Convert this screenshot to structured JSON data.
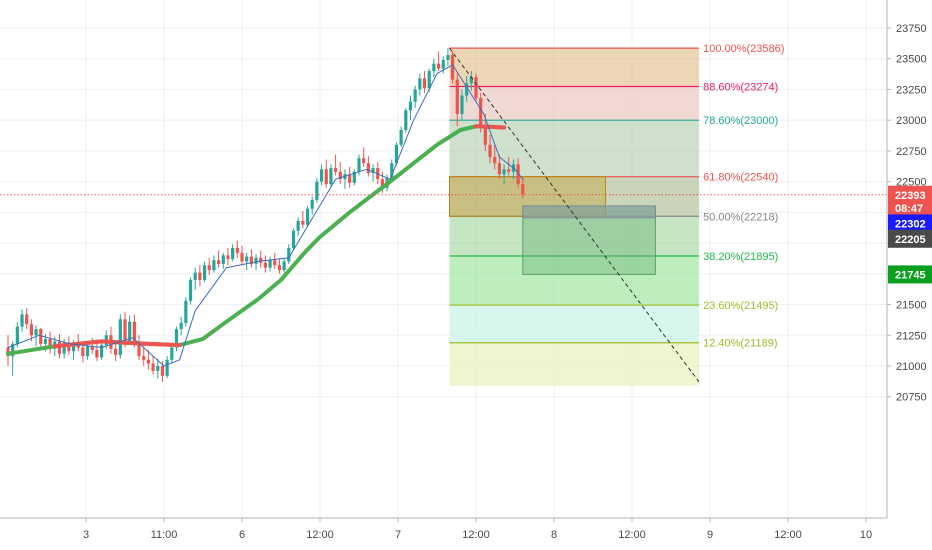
{
  "chart_data": {
    "type": "candlestick",
    "title": "",
    "xlabel": "",
    "ylabel": "",
    "ylim": [
      20550,
      23850
    ],
    "grid": true,
    "x_ticks": [
      {
        "label": "3",
        "t": 0.5
      },
      {
        "label": "11:00",
        "t": 1.0
      },
      {
        "label": "6",
        "t": 1.5
      },
      {
        "label": "12:00",
        "t": 2.0
      },
      {
        "label": "7",
        "t": 2.5
      },
      {
        "label": "12:00",
        "t": 3.0
      },
      {
        "label": "8",
        "t": 3.5
      },
      {
        "label": "12:00",
        "t": 4.0
      },
      {
        "label": "9",
        "t": 4.5
      },
      {
        "label": "12:00",
        "t": 5.0
      },
      {
        "label": "10",
        "t": 5.5
      }
    ],
    "y_ticks": [
      20750,
      21000,
      21250,
      21500,
      21750,
      22000,
      22250,
      22500,
      22750,
      23000,
      23250,
      23500,
      23750
    ],
    "price_badges": [
      {
        "label": "22393",
        "value": 22393,
        "color": "#ef5350",
        "text_color": "#ffffff"
      },
      {
        "label": "08:47",
        "value": 22285,
        "color": "#ef5350",
        "text_color": "#ffffff"
      },
      {
        "label": "22302",
        "value": 22160,
        "color": "#1a1aff",
        "text_color": "#ffffff"
      },
      {
        "label": "22205",
        "value": 22035,
        "color": "#4a4a4a",
        "text_color": "#ffffff"
      },
      {
        "label": "21745",
        "value": 21745,
        "color": "#0a9f1e",
        "text_color": "#ffffff"
      }
    ],
    "current_price": 22393,
    "candles": [
      [
        0.0,
        21150,
        21250,
        21000,
        21080
      ],
      [
        0.03,
        21080,
        21200,
        20920,
        21180
      ],
      [
        0.06,
        21180,
        21360,
        21150,
        21320
      ],
      [
        0.09,
        21320,
        21460,
        21280,
        21420
      ],
      [
        0.12,
        21420,
        21470,
        21300,
        21340
      ],
      [
        0.15,
        21340,
        21380,
        21200,
        21250
      ],
      [
        0.18,
        21250,
        21330,
        21160,
        21300
      ],
      [
        0.21,
        21300,
        21310,
        21150,
        21180
      ],
      [
        0.24,
        21180,
        21260,
        21120,
        21220
      ],
      [
        0.27,
        21220,
        21280,
        21100,
        21140
      ],
      [
        0.3,
        21140,
        21240,
        21080,
        21200
      ],
      [
        0.33,
        21200,
        21260,
        21060,
        21100
      ],
      [
        0.36,
        21100,
        21220,
        21060,
        21190
      ],
      [
        0.39,
        21190,
        21240,
        21090,
        21120
      ],
      [
        0.42,
        21120,
        21210,
        21050,
        21170
      ],
      [
        0.45,
        21170,
        21260,
        21120,
        21150
      ],
      [
        0.48,
        21150,
        21200,
        21030,
        21080
      ],
      [
        0.51,
        21080,
        21180,
        21050,
        21160
      ],
      [
        0.54,
        21160,
        21230,
        21100,
        21130
      ],
      [
        0.57,
        21130,
        21180,
        21040,
        21070
      ],
      [
        0.6,
        21070,
        21200,
        21050,
        21170
      ],
      [
        0.63,
        21170,
        21290,
        21140,
        21250
      ],
      [
        0.66,
        21250,
        21320,
        21100,
        21140
      ],
      [
        0.69,
        21140,
        21190,
        21040,
        21090
      ],
      [
        0.72,
        21090,
        21420,
        21060,
        21380
      ],
      [
        0.75,
        21380,
        21440,
        21150,
        21200
      ],
      [
        0.78,
        21200,
        21410,
        21170,
        21360
      ],
      [
        0.81,
        21360,
        21420,
        21150,
        21180
      ],
      [
        0.84,
        21180,
        21250,
        21050,
        21080
      ],
      [
        0.87,
        21080,
        21160,
        21000,
        21050
      ],
      [
        0.9,
        21050,
        21130,
        20970,
        21020
      ],
      [
        0.93,
        21020,
        21080,
        20930,
        20960
      ],
      [
        0.96,
        20960,
        21060,
        20900,
        21000
      ],
      [
        0.99,
        21000,
        21040,
        20870,
        20920
      ],
      [
        1.02,
        20920,
        21080,
        20900,
        21050
      ],
      [
        1.05,
        21050,
        21180,
        21020,
        21150
      ],
      [
        1.08,
        21150,
        21320,
        21120,
        21300
      ],
      [
        1.11,
        21300,
        21400,
        21250,
        21350
      ],
      [
        1.14,
        21350,
        21560,
        21320,
        21530
      ],
      [
        1.17,
        21530,
        21720,
        21500,
        21700
      ],
      [
        1.2,
        21700,
        21800,
        21620,
        21760
      ],
      [
        1.23,
        21760,
        21820,
        21650,
        21700
      ],
      [
        1.26,
        21700,
        21850,
        21680,
        21820
      ],
      [
        1.29,
        21820,
        21880,
        21740,
        21780
      ],
      [
        1.32,
        21780,
        21900,
        21760,
        21860
      ],
      [
        1.35,
        21860,
        21940,
        21800,
        21830
      ],
      [
        1.38,
        21830,
        21920,
        21790,
        21900
      ],
      [
        1.41,
        21900,
        21960,
        21820,
        21870
      ],
      [
        1.44,
        21870,
        21990,
        21850,
        21960
      ],
      [
        1.47,
        21960,
        22020,
        21880,
        21920
      ],
      [
        1.5,
        21920,
        21980,
        21820,
        21850
      ],
      [
        1.53,
        21850,
        21920,
        21780,
        21890
      ],
      [
        1.56,
        21890,
        21950,
        21800,
        21830
      ],
      [
        1.59,
        21830,
        21910,
        21780,
        21880
      ],
      [
        1.62,
        21880,
        21940,
        21800,
        21840
      ],
      [
        1.65,
        21840,
        21900,
        21760,
        21800
      ],
      [
        1.68,
        21800,
        21890,
        21770,
        21860
      ],
      [
        1.71,
        21860,
        21920,
        21790,
        21820
      ],
      [
        1.74,
        21820,
        21870,
        21750,
        21780
      ],
      [
        1.77,
        21780,
        21880,
        21760,
        21850
      ],
      [
        1.8,
        21850,
        21990,
        21830,
        21960
      ],
      [
        1.83,
        21960,
        22120,
        21940,
        22100
      ],
      [
        1.86,
        22100,
        22210,
        22060,
        22180
      ],
      [
        1.89,
        22180,
        22260,
        22120,
        22150
      ],
      [
        1.92,
        22150,
        22300,
        22130,
        22280
      ],
      [
        1.95,
        22280,
        22380,
        22230,
        22350
      ],
      [
        1.98,
        22350,
        22530,
        22330,
        22500
      ],
      [
        2.01,
        22500,
        22640,
        22470,
        22600
      ],
      [
        2.04,
        22600,
        22680,
        22450,
        22480
      ],
      [
        2.07,
        22480,
        22640,
        22460,
        22610
      ],
      [
        2.1,
        22610,
        22720,
        22550,
        22580
      ],
      [
        2.13,
        22580,
        22660,
        22480,
        22520
      ],
      [
        2.16,
        22520,
        22600,
        22440,
        22560
      ],
      [
        2.19,
        22560,
        22620,
        22450,
        22490
      ],
      [
        2.22,
        22490,
        22600,
        22470,
        22580
      ],
      [
        2.25,
        22580,
        22720,
        22550,
        22690
      ],
      [
        2.28,
        22690,
        22780,
        22620,
        22650
      ],
      [
        2.31,
        22650,
        22710,
        22540,
        22570
      ],
      [
        2.34,
        22570,
        22640,
        22500,
        22610
      ],
      [
        2.37,
        22610,
        22660,
        22480,
        22520
      ],
      [
        2.4,
        22520,
        22580,
        22410,
        22450
      ],
      [
        2.43,
        22450,
        22560,
        22420,
        22530
      ],
      [
        2.46,
        22530,
        22680,
        22510,
        22650
      ],
      [
        2.49,
        22650,
        22820,
        22630,
        22800
      ],
      [
        2.52,
        22800,
        22950,
        22780,
        22920
      ],
      [
        2.55,
        22920,
        23100,
        22900,
        23080
      ],
      [
        2.58,
        23080,
        23200,
        23000,
        23150
      ],
      [
        2.61,
        23150,
        23280,
        23100,
        23250
      ],
      [
        2.64,
        23250,
        23380,
        23200,
        23340
      ],
      [
        2.67,
        23340,
        23400,
        23220,
        23260
      ],
      [
        2.7,
        23260,
        23420,
        23230,
        23400
      ],
      [
        2.73,
        23400,
        23500,
        23350,
        23460
      ],
      [
        2.76,
        23460,
        23560,
        23400,
        23420
      ],
      [
        2.79,
        23420,
        23520,
        23380,
        23490
      ],
      [
        2.82,
        23490,
        23586,
        23440,
        23530
      ],
      [
        2.85,
        23530,
        23560,
        23300,
        23330
      ],
      [
        2.88,
        23330,
        23380,
        22950,
        23050
      ],
      [
        2.91,
        23050,
        23250,
        23000,
        23200
      ],
      [
        2.94,
        23200,
        23360,
        23150,
        23300
      ],
      [
        2.97,
        23300,
        23400,
        23240,
        23350
      ],
      [
        3.0,
        23350,
        23380,
        23150,
        23180
      ],
      [
        3.03,
        23180,
        23220,
        22900,
        22950
      ],
      [
        3.06,
        22950,
        23050,
        22750,
        22800
      ],
      [
        3.09,
        22800,
        22880,
        22650,
        22700
      ],
      [
        3.12,
        22700,
        22800,
        22600,
        22650
      ],
      [
        3.15,
        22650,
        22720,
        22520,
        22560
      ],
      [
        3.18,
        22560,
        22640,
        22480,
        22600
      ],
      [
        3.21,
        22600,
        22700,
        22550,
        22580
      ],
      [
        3.24,
        22580,
        22680,
        22520,
        22640
      ],
      [
        3.27,
        22640,
        22690,
        22450,
        22480
      ],
      [
        3.3,
        22480,
        22530,
        22360,
        22393
      ]
    ],
    "moving_averages": [
      {
        "color": "#4caf50",
        "down_color": "#ef5350",
        "width": 4,
        "down_from_t": 0.3,
        "down_to_t": 1.1,
        "points": [
          [
            0.0,
            21100
          ],
          [
            0.3,
            21160
          ],
          [
            0.6,
            21200
          ],
          [
            0.9,
            21180
          ],
          [
            1.1,
            21170
          ],
          [
            1.25,
            21220
          ],
          [
            1.4,
            21360
          ],
          [
            1.6,
            21540
          ],
          [
            1.75,
            21700
          ],
          [
            1.9,
            21920
          ],
          [
            2.0,
            22050
          ],
          [
            2.2,
            22260
          ],
          [
            2.45,
            22500
          ],
          [
            2.6,
            22650
          ],
          [
            2.75,
            22800
          ],
          [
            2.9,
            22920
          ],
          [
            3.0,
            22950
          ],
          [
            3.1,
            22945
          ],
          [
            3.18,
            22940
          ]
        ]
      },
      {
        "color": "#3d6dbd",
        "width": 1,
        "points": [
          [
            0.0,
            21150
          ],
          [
            0.2,
            21250
          ],
          [
            0.4,
            21180
          ],
          [
            0.6,
            21150
          ],
          [
            0.8,
            21230
          ],
          [
            1.0,
            21000
          ],
          [
            1.1,
            21050
          ],
          [
            1.2,
            21450
          ],
          [
            1.4,
            21800
          ],
          [
            1.6,
            21850
          ],
          [
            1.8,
            21880
          ],
          [
            1.95,
            22200
          ],
          [
            2.1,
            22520
          ],
          [
            2.3,
            22600
          ],
          [
            2.45,
            22520
          ],
          [
            2.6,
            23000
          ],
          [
            2.75,
            23380
          ],
          [
            2.85,
            23450
          ],
          [
            2.95,
            23250
          ],
          [
            3.05,
            23050
          ],
          [
            3.15,
            22700
          ],
          [
            3.25,
            22600
          ],
          [
            3.3,
            22520
          ]
        ]
      }
    ],
    "fibonacci": {
      "t_start": 2.83,
      "t_end": 4.43,
      "levels": [
        {
          "label": "100.00%(23586)",
          "value": 23586,
          "color": "#ef5350",
          "fill": "#d6a35a",
          "fill_opacity": 0.45
        },
        {
          "label": "88.60%(23274)",
          "value": 23274,
          "color": "#e91e63",
          "fill": "#e3b4a8",
          "fill_opacity": 0.5
        },
        {
          "label": "78.60%(23000)",
          "value": 23000,
          "color": "#26a69a",
          "fill": "#a7c7a2",
          "fill_opacity": 0.55
        },
        {
          "label": "61.80%(22540)",
          "value": 22540,
          "color": "#ef5350",
          "fill": "#a5b78e",
          "fill_opacity": 0.6
        },
        {
          "label": "50.00%(22218)",
          "value": 22218,
          "color": "#888888",
          "fill": "#9ed49b",
          "fill_opacity": 0.6
        },
        {
          "label": "38.20%(21895)",
          "value": 21895,
          "color": "#22b84a",
          "fill": "#93e393",
          "fill_opacity": 0.6
        },
        {
          "label": "23.60%(21495)",
          "value": 21495,
          "color": "#a0c230",
          "fill": "#c8f3e4",
          "fill_opacity": 0.7
        },
        {
          "label": "12.40%(21189)",
          "value": 21189,
          "color": "#9cbb2a",
          "fill": "#eaf3c3",
          "fill_opacity": 0.8
        }
      ],
      "bottom_value": 20840
    },
    "trend_line": {
      "from": [
        2.83,
        23586
      ],
      "to": [
        4.43,
        20870
      ],
      "color": "#333333"
    },
    "overlay_boxes": [
      {
        "t0": 2.83,
        "t1": 3.83,
        "v_top": 22540,
        "v_bottom": 22218,
        "fill": "#c7a22c",
        "opacity": 0.4,
        "stroke": "#b58a10"
      },
      {
        "t0": 3.3,
        "t1": 4.15,
        "v_top": 22302,
        "v_bottom": 21745,
        "fill": "#6fb47a",
        "opacity": 0.45,
        "stroke": "#58a06a"
      },
      {
        "t0": 3.3,
        "t1": 4.15,
        "v_top": 22302,
        "v_bottom": 22205,
        "fill": "#8a9aa8",
        "opacity": 0.5,
        "stroke": "#7d8c9a"
      }
    ]
  }
}
